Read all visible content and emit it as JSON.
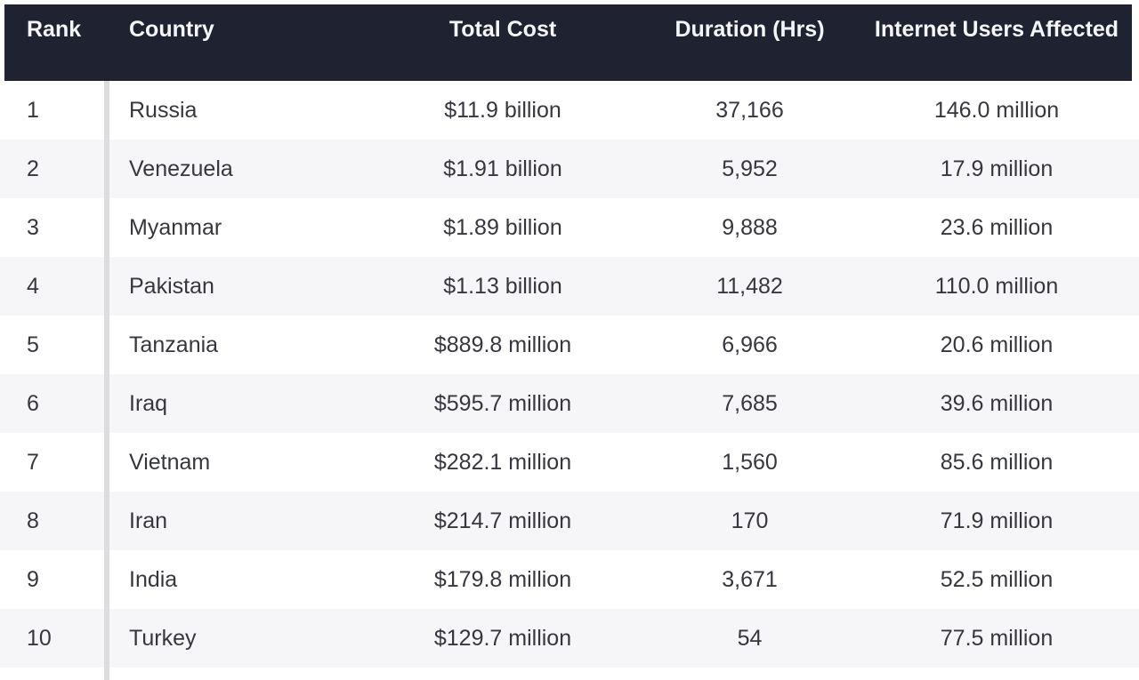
{
  "chart_data": {
    "type": "table",
    "title": "",
    "columns": [
      "Rank",
      "Country",
      "Total Cost",
      "Duration (Hrs)",
      "Internet Users Affected"
    ],
    "rows": [
      {
        "rank": "1",
        "country": "Russia",
        "total_cost": "$11.9 billion",
        "duration_hrs": "37,166",
        "internet_users_affected": "146.0 million"
      },
      {
        "rank": "2",
        "country": "Venezuela",
        "total_cost": "$1.91 billion",
        "duration_hrs": "5,952",
        "internet_users_affected": "17.9 million"
      },
      {
        "rank": "3",
        "country": "Myanmar",
        "total_cost": "$1.89 billion",
        "duration_hrs": "9,888",
        "internet_users_affected": "23.6 million"
      },
      {
        "rank": "4",
        "country": "Pakistan",
        "total_cost": "$1.13 billion",
        "duration_hrs": "11,482",
        "internet_users_affected": "110.0 million"
      },
      {
        "rank": "5",
        "country": "Tanzania",
        "total_cost": "$889.8 million",
        "duration_hrs": "6,966",
        "internet_users_affected": "20.6 million"
      },
      {
        "rank": "6",
        "country": "Iraq",
        "total_cost": "$595.7 million",
        "duration_hrs": "7,685",
        "internet_users_affected": "39.6 million"
      },
      {
        "rank": "7",
        "country": "Vietnam",
        "total_cost": "$282.1 million",
        "duration_hrs": "1,560",
        "internet_users_affected": "85.6 million"
      },
      {
        "rank": "8",
        "country": "Iran",
        "total_cost": "$214.7 million",
        "duration_hrs": "170",
        "internet_users_affected": "71.9 million"
      },
      {
        "rank": "9",
        "country": "India",
        "total_cost": "$179.8 million",
        "duration_hrs": "3,671",
        "internet_users_affected": "52.5 million"
      },
      {
        "rank": "10",
        "country": "Turkey",
        "total_cost": "$129.7 million",
        "duration_hrs": "54",
        "internet_users_affected": "77.5 million"
      }
    ]
  },
  "colors": {
    "header_bg": "#1f2230",
    "header_text": "#f4f5f7",
    "body_text": "#36373e",
    "stripe": "#f6f6f8",
    "divider": "#dcdcdf",
    "page_bg": "#ffffff"
  }
}
